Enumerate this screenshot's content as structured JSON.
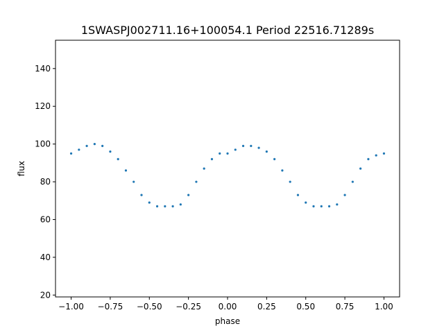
{
  "chart_data": {
    "type": "scatter",
    "title": "1SWASPJ002711.16+100054.1 Period 22516.71289s",
    "xlabel": "phase",
    "ylabel": "flux",
    "xlim": [
      -1.1,
      1.1
    ],
    "ylim": [
      19,
      155
    ],
    "xticks": [
      -1.0,
      -0.75,
      -0.5,
      -0.25,
      0.0,
      0.25,
      0.5,
      0.75,
      1.0
    ],
    "xtick_labels": [
      "−1.00",
      "−0.75",
      "−0.50",
      "−0.25",
      "0.00",
      "0.25",
      "0.50",
      "0.75",
      "1.00"
    ],
    "yticks": [
      20,
      40,
      60,
      80,
      100,
      120,
      140
    ],
    "ytick_labels": [
      "20",
      "40",
      "60",
      "80",
      "100",
      "120",
      "140"
    ],
    "grid": false,
    "marker_color": "#1f77b4",
    "series": [
      {
        "phase": [
          -1.0,
          -0.95,
          -0.9,
          -0.85,
          -0.8,
          -0.75,
          -0.7,
          -0.65,
          -0.6,
          -0.55,
          -0.5,
          -0.45,
          -0.4,
          -0.35,
          -0.3,
          -0.25,
          -0.2,
          -0.15,
          -0.1,
          -0.05,
          0.0,
          0.05,
          0.1,
          0.15,
          0.2,
          0.25,
          0.3,
          0.35,
          0.4,
          0.45,
          0.5,
          0.55,
          0.6,
          0.65,
          0.7,
          0.75,
          0.8,
          0.85,
          0.9,
          0.95,
          1.0
        ],
        "flux": [
          95,
          97,
          99,
          100,
          99,
          96,
          92,
          86,
          80,
          73,
          69,
          67,
          67,
          67,
          68,
          73,
          80,
          87,
          92,
          95,
          95,
          97,
          99,
          99,
          98,
          96,
          92,
          86,
          80,
          73,
          69,
          67,
          67,
          67,
          68,
          73,
          80,
          87,
          92,
          94,
          95
        ]
      }
    ]
  }
}
